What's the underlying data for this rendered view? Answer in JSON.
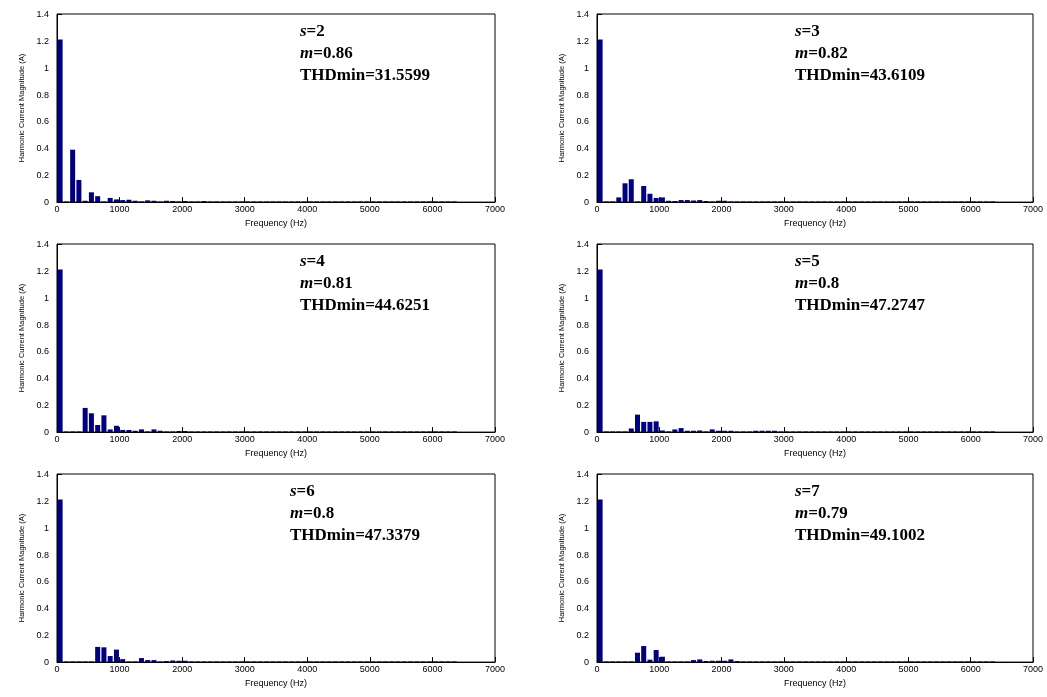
{
  "chart_data": [
    {
      "type": "bar",
      "color": "#000080",
      "xlabel": "Frequency (Hz)",
      "ylabel": "Harmonic Current Magnitude (A)",
      "xlim": [
        0,
        7000
      ],
      "ylim": [
        0,
        1.4
      ],
      "xticks": [
        0,
        1000,
        2000,
        3000,
        4000,
        5000,
        6000,
        7000
      ],
      "yticks": [
        0,
        0.2,
        0.4,
        0.6,
        0.8,
        1,
        1.2,
        1.4
      ],
      "annotations": [
        "s=2",
        "m=0.86",
        "THDmin=31.5599"
      ],
      "x": [
        50,
        150,
        250,
        350,
        450,
        550,
        650,
        750,
        850,
        950,
        1050,
        1150,
        1250,
        1350,
        1450,
        1550,
        1650,
        1750,
        1850,
        1950,
        2050,
        2150,
        2250,
        2350,
        2450,
        2550,
        2650,
        2750,
        2850,
        2950,
        3050,
        3150,
        3250,
        3350,
        3450,
        3550,
        3650,
        3750,
        3850,
        3950,
        4050,
        4150,
        4250,
        4350,
        4450,
        4550,
        4650,
        4750,
        4850,
        4950,
        5050,
        5150,
        5250,
        5350,
        5450,
        5550,
        5650,
        5750,
        5850,
        5950,
        6050,
        6150,
        6250,
        6350
      ],
      "values": [
        1.21,
        0.005,
        0.39,
        0.165,
        0.01,
        0.073,
        0.044,
        0.005,
        0.031,
        0.02,
        0.015,
        0.018,
        0.01,
        0.005,
        0.013,
        0.01,
        0.005,
        0.01,
        0.008,
        0.005,
        0.008,
        0.005,
        0.005,
        0.008,
        0.005,
        0.005,
        0.005,
        0.005,
        0.005,
        0.005,
        0.005,
        0.005,
        0.005,
        0.005,
        0.005,
        0.005,
        0.005,
        0.005,
        0.005,
        0.005,
        0.005,
        0.005,
        0.005,
        0.005,
        0.005,
        0.005,
        0.005,
        0.005,
        0.005,
        0.005,
        0.005,
        0.005,
        0.005,
        0.005,
        0.005,
        0.005,
        0.005,
        0.005,
        0.005,
        0.005,
        0.005,
        0.005,
        0.005,
        0.005
      ]
    },
    {
      "type": "bar",
      "color": "#000080",
      "xlabel": "Frequency (Hz)",
      "ylabel": "Harmonic Current Magnitude (A)",
      "xlim": [
        0,
        7000
      ],
      "ylim": [
        0,
        1.4
      ],
      "xticks": [
        0,
        1000,
        2000,
        3000,
        4000,
        5000,
        6000,
        7000
      ],
      "yticks": [
        0,
        0.2,
        0.4,
        0.6,
        0.8,
        1,
        1.2,
        1.4
      ],
      "annotations": [
        "s=3",
        "m=0.82",
        "THDmin=43.6109"
      ],
      "x": [
        50,
        150,
        250,
        350,
        450,
        550,
        650,
        750,
        850,
        950,
        1050,
        1150,
        1250,
        1350,
        1450,
        1550,
        1650,
        1750,
        1850,
        1950,
        2050,
        2150,
        2250,
        2350,
        2450,
        2550,
        2650,
        2750,
        2850,
        2950,
        3050,
        3150,
        3250,
        3350,
        3450,
        3550,
        3650,
        3750,
        3850,
        3950,
        4050,
        4150,
        4250,
        4350,
        4450,
        4550,
        4650,
        4750,
        4850,
        4950,
        5050,
        5150,
        5250,
        5350,
        5450,
        5550,
        5650,
        5750,
        5850,
        5950,
        6050,
        6150,
        6250,
        6350
      ],
      "values": [
        1.21,
        0.005,
        0.005,
        0.035,
        0.14,
        0.17,
        0.005,
        0.12,
        0.062,
        0.031,
        0.035,
        0.01,
        0.008,
        0.015,
        0.015,
        0.012,
        0.015,
        0.008,
        0.005,
        0.01,
        0.01,
        0.005,
        0.005,
        0.005,
        0.005,
        0.005,
        0.005,
        0.005,
        0.005,
        0.005,
        0.005,
        0.005,
        0.005,
        0.005,
        0.005,
        0.005,
        0.005,
        0.005,
        0.005,
        0.005,
        0.005,
        0.005,
        0.005,
        0.005,
        0.005,
        0.005,
        0.005,
        0.005,
        0.005,
        0.005,
        0.005,
        0.005,
        0.005,
        0.005,
        0.005,
        0.005,
        0.005,
        0.005,
        0.005,
        0.005,
        0.005,
        0.005,
        0.005,
        0.005
      ]
    },
    {
      "type": "bar",
      "color": "#000080",
      "xlabel": "Frequency (Hz)",
      "ylabel": "Harmonic Current Magnitude (A)",
      "xlim": [
        0,
        7000
      ],
      "ylim": [
        0,
        1.4
      ],
      "xticks": [
        0,
        1000,
        2000,
        3000,
        4000,
        5000,
        6000,
        7000
      ],
      "yticks": [
        0,
        0.2,
        0.4,
        0.6,
        0.8,
        1,
        1.2,
        1.4
      ],
      "annotations": [
        "s=4",
        "m=0.81",
        "THDmin=44.6251"
      ],
      "x": [
        50,
        150,
        250,
        350,
        450,
        550,
        650,
        750,
        850,
        950,
        1050,
        1150,
        1250,
        1350,
        1450,
        1550,
        1650,
        1750,
        1850,
        1950,
        2050,
        2150,
        2250,
        2350,
        2450,
        2550,
        2650,
        2750,
        2850,
        2950,
        3050,
        3150,
        3250,
        3350,
        3450,
        3550,
        3650,
        3750,
        3850,
        3950,
        4050,
        4150,
        4250,
        4350,
        4450,
        4550,
        4650,
        4750,
        4850,
        4950,
        5050,
        5150,
        5250,
        5350,
        5450,
        5550,
        5650,
        5750,
        5850,
        5950,
        6050,
        6150,
        6250,
        6350
      ],
      "values": [
        1.21,
        0.005,
        0.005,
        0.005,
        0.18,
        0.14,
        0.053,
        0.125,
        0.02,
        0.047,
        0.016,
        0.016,
        0.01,
        0.02,
        0.005,
        0.02,
        0.01,
        0.005,
        0.005,
        0.008,
        0.008,
        0.005,
        0.005,
        0.005,
        0.005,
        0.005,
        0.005,
        0.005,
        0.005,
        0.005,
        0.005,
        0.005,
        0.005,
        0.005,
        0.005,
        0.005,
        0.005,
        0.005,
        0.005,
        0.005,
        0.005,
        0.005,
        0.005,
        0.005,
        0.005,
        0.005,
        0.005,
        0.005,
        0.005,
        0.005,
        0.005,
        0.005,
        0.005,
        0.005,
        0.005,
        0.005,
        0.005,
        0.005,
        0.005,
        0.005,
        0.005,
        0.005,
        0.005,
        0.005
      ]
    },
    {
      "type": "bar",
      "color": "#000080",
      "xlabel": "Frequency (Hz)",
      "ylabel": "Harmonic Current Magnitude (A)",
      "xlim": [
        0,
        7000
      ],
      "ylim": [
        0,
        1.4
      ],
      "xticks": [
        0,
        1000,
        2000,
        3000,
        4000,
        5000,
        6000,
        7000
      ],
      "yticks": [
        0,
        0.2,
        0.4,
        0.6,
        0.8,
        1,
        1.2,
        1.4
      ],
      "annotations": [
        "s=5",
        "m=0.8",
        "THDmin=47.2747"
      ],
      "x": [
        50,
        150,
        250,
        350,
        450,
        550,
        650,
        750,
        850,
        950,
        1050,
        1150,
        1250,
        1350,
        1450,
        1550,
        1650,
        1750,
        1850,
        1950,
        2050,
        2150,
        2250,
        2350,
        2450,
        2550,
        2650,
        2750,
        2850,
        2950,
        3050,
        3150,
        3250,
        3350,
        3450,
        3550,
        3650,
        3750,
        3850,
        3950,
        4050,
        4150,
        4250,
        4350,
        4450,
        4550,
        4650,
        4750,
        4850,
        4950,
        5050,
        5150,
        5250,
        5350,
        5450,
        5550,
        5650,
        5750,
        5850,
        5950,
        6050,
        6150,
        6250,
        6350
      ],
      "values": [
        1.21,
        0.005,
        0.005,
        0.005,
        0.005,
        0.027,
        0.13,
        0.076,
        0.076,
        0.08,
        0.012,
        0.005,
        0.02,
        0.03,
        0.01,
        0.01,
        0.012,
        0.005,
        0.02,
        0.01,
        0.01,
        0.01,
        0.005,
        0.005,
        0.005,
        0.01,
        0.01,
        0.01,
        0.01,
        0.005,
        0.005,
        0.005,
        0.005,
        0.005,
        0.005,
        0.005,
        0.005,
        0.005,
        0.005,
        0.005,
        0.005,
        0.005,
        0.005,
        0.005,
        0.005,
        0.005,
        0.005,
        0.005,
        0.005,
        0.005,
        0.005,
        0.005,
        0.005,
        0.005,
        0.005,
        0.005,
        0.005,
        0.005,
        0.005,
        0.005,
        0.005,
        0.005,
        0.005,
        0.005
      ]
    },
    {
      "type": "bar",
      "color": "#000080",
      "xlabel": "Frequency (Hz)",
      "ylabel": "Harmonic Current Magnitude (A)",
      "xlim": [
        0,
        7000
      ],
      "ylim": [
        0,
        1.4
      ],
      "xticks": [
        0,
        1000,
        2000,
        3000,
        4000,
        5000,
        6000,
        7000
      ],
      "yticks": [
        0,
        0.2,
        0.4,
        0.6,
        0.8,
        1,
        1.2,
        1.4
      ],
      "annotations": [
        "s=6",
        "m=0.8",
        "THDmin=47.3379"
      ],
      "x": [
        50,
        150,
        250,
        350,
        450,
        550,
        650,
        750,
        850,
        950,
        1050,
        1150,
        1250,
        1350,
        1450,
        1550,
        1650,
        1750,
        1850,
        1950,
        2050,
        2150,
        2250,
        2350,
        2450,
        2550,
        2650,
        2750,
        2850,
        2950,
        3050,
        3150,
        3250,
        3350,
        3450,
        3550,
        3650,
        3750,
        3850,
        3950,
        4050,
        4150,
        4250,
        4350,
        4450,
        4550,
        4650,
        4750,
        4850,
        4950,
        5050,
        5150,
        5250,
        5350,
        5450,
        5550,
        5650,
        5750,
        5850,
        5950,
        6050,
        6150,
        6250,
        6350
      ],
      "values": [
        1.21,
        0.005,
        0.005,
        0.005,
        0.005,
        0.005,
        0.113,
        0.11,
        0.045,
        0.093,
        0.022,
        0.005,
        0.005,
        0.03,
        0.015,
        0.015,
        0.005,
        0.008,
        0.012,
        0.01,
        0.01,
        0.005,
        0.005,
        0.005,
        0.005,
        0.005,
        0.005,
        0.005,
        0.005,
        0.005,
        0.005,
        0.005,
        0.005,
        0.005,
        0.005,
        0.005,
        0.005,
        0.005,
        0.005,
        0.005,
        0.005,
        0.005,
        0.005,
        0.005,
        0.005,
        0.005,
        0.005,
        0.005,
        0.005,
        0.005,
        0.005,
        0.005,
        0.005,
        0.005,
        0.005,
        0.005,
        0.005,
        0.005,
        0.005,
        0.005,
        0.005,
        0.005,
        0.005,
        0.005
      ]
    },
    {
      "type": "bar",
      "color": "#000080",
      "xlabel": "Frequency (Hz)",
      "ylabel": "Harmonic Current Magnitude (A)",
      "xlim": [
        0,
        7000
      ],
      "ylim": [
        0,
        1.4
      ],
      "xticks": [
        0,
        1000,
        2000,
        3000,
        4000,
        5000,
        6000,
        7000
      ],
      "yticks": [
        0,
        0.2,
        0.4,
        0.6,
        0.8,
        1,
        1.2,
        1.4
      ],
      "annotations": [
        "s=7",
        "m=0.79",
        "THDmin=49.1002"
      ],
      "x": [
        50,
        150,
        250,
        350,
        450,
        550,
        650,
        750,
        850,
        950,
        1050,
        1150,
        1250,
        1350,
        1450,
        1550,
        1650,
        1750,
        1850,
        1950,
        2050,
        2150,
        2250,
        2350,
        2450,
        2550,
        2650,
        2750,
        2850,
        2950,
        3050,
        3150,
        3250,
        3350,
        3450,
        3550,
        3650,
        3750,
        3850,
        3950,
        4050,
        4150,
        4250,
        4350,
        4450,
        4550,
        4650,
        4750,
        4850,
        4950,
        5050,
        5150,
        5250,
        5350,
        5450,
        5550,
        5650,
        5750,
        5850,
        5950,
        6050,
        6150,
        6250,
        6350
      ],
      "values": [
        1.21,
        0.005,
        0.005,
        0.005,
        0.005,
        0.005,
        0.07,
        0.12,
        0.018,
        0.09,
        0.04,
        0.005,
        0.005,
        0.005,
        0.005,
        0.015,
        0.02,
        0.008,
        0.01,
        0.01,
        0.01,
        0.02,
        0.008,
        0.005,
        0.005,
        0.005,
        0.005,
        0.005,
        0.005,
        0.005,
        0.005,
        0.005,
        0.005,
        0.005,
        0.005,
        0.005,
        0.005,
        0.005,
        0.005,
        0.005,
        0.005,
        0.005,
        0.005,
        0.005,
        0.005,
        0.005,
        0.005,
        0.005,
        0.005,
        0.005,
        0.005,
        0.005,
        0.005,
        0.005,
        0.005,
        0.005,
        0.005,
        0.005,
        0.005,
        0.005,
        0.005,
        0.005,
        0.005,
        0.005
      ]
    }
  ]
}
